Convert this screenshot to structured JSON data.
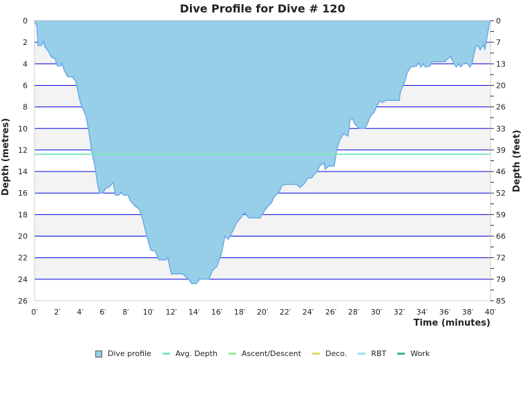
{
  "chart_data": {
    "type": "area",
    "title": "Dive Profile for Dive # 120",
    "xlabel": "Time (minutes)",
    "ylabel": "Depth (metres)",
    "ylabel_right": "Depth (feet)",
    "xlim": [
      0,
      40
    ],
    "ylim": [
      0,
      26
    ],
    "y_inverted": true,
    "x_ticks": [
      "0′",
      "2′",
      "4′",
      "6′",
      "8′",
      "10′",
      "12′",
      "14′",
      "16′",
      "18′",
      "20′",
      "22′",
      "24′",
      "26′",
      "28′",
      "30′",
      "32′",
      "34′",
      "36′",
      "38′",
      "40′"
    ],
    "y_ticks": [
      "0",
      "2",
      "4",
      "6",
      "8",
      "10",
      "12",
      "14",
      "16",
      "18",
      "20",
      "22",
      "24",
      "26"
    ],
    "y_right_ticks": [
      "0",
      "7",
      "13",
      "20",
      "26",
      "33",
      "39",
      "46",
      "52",
      "59",
      "66",
      "72",
      "79",
      "85"
    ],
    "grid": true,
    "avg_depth": 12.4,
    "colors": {
      "profile_fill": "#97cfe9",
      "profile_line": "#6aa8e8",
      "grid": "#0000dd",
      "band": "#f3f3f3",
      "avg_depth": "#7de8b8"
    },
    "series": [
      {
        "name": "Dive profile",
        "points": [
          [
            0,
            0
          ],
          [
            0.2,
            0.5
          ],
          [
            0.3,
            2.3
          ],
          [
            0.6,
            2.3
          ],
          [
            0.8,
            1.9
          ],
          [
            0.9,
            2.4
          ],
          [
            1.2,
            2.8
          ],
          [
            1.5,
            3.4
          ],
          [
            1.8,
            3.5
          ],
          [
            2.0,
            4.2
          ],
          [
            2.3,
            4.2
          ],
          [
            2.4,
            3.9
          ],
          [
            2.6,
            4.6
          ],
          [
            2.9,
            5.2
          ],
          [
            3.3,
            5.2
          ],
          [
            3.6,
            5.6
          ],
          [
            3.8,
            6.5
          ],
          [
            4.0,
            7.5
          ],
          [
            4.2,
            8.1
          ],
          [
            4.5,
            8.8
          ],
          [
            4.8,
            10.5
          ],
          [
            5.0,
            12.0
          ],
          [
            5.3,
            13.5
          ],
          [
            5.5,
            15.0
          ],
          [
            5.7,
            16.0
          ],
          [
            6.0,
            16.0
          ],
          [
            6.2,
            15.6
          ],
          [
            6.6,
            15.4
          ],
          [
            6.9,
            15.0
          ],
          [
            7.1,
            16.2
          ],
          [
            7.4,
            16.2
          ],
          [
            7.6,
            15.9
          ],
          [
            7.8,
            16.2
          ],
          [
            8.2,
            16.2
          ],
          [
            8.4,
            16.7
          ],
          [
            8.8,
            17.2
          ],
          [
            9.2,
            17.5
          ],
          [
            9.5,
            18.5
          ],
          [
            9.8,
            19.8
          ],
          [
            10.2,
            21.3
          ],
          [
            10.6,
            21.4
          ],
          [
            10.9,
            22.2
          ],
          [
            11.5,
            22.2
          ],
          [
            11.7,
            22.0
          ],
          [
            12.0,
            23.5
          ],
          [
            13.0,
            23.5
          ],
          [
            13.5,
            24.0
          ],
          [
            13.8,
            24.4
          ],
          [
            14.2,
            24.4
          ],
          [
            14.5,
            24.0
          ],
          [
            15.3,
            24.0
          ],
          [
            15.6,
            23.2
          ],
          [
            16.0,
            22.8
          ],
          [
            16.4,
            21.6
          ],
          [
            16.7,
            20.0
          ],
          [
            17.0,
            20.3
          ],
          [
            17.4,
            19.5
          ],
          [
            17.7,
            18.8
          ],
          [
            18.1,
            18.3
          ],
          [
            18.4,
            17.8
          ],
          [
            18.8,
            18.3
          ],
          [
            19.8,
            18.3
          ],
          [
            20.2,
            17.6
          ],
          [
            20.5,
            17.2
          ],
          [
            20.8,
            16.9
          ],
          [
            21.0,
            16.4
          ],
          [
            21.5,
            15.8
          ],
          [
            21.7,
            15.3
          ],
          [
            22.0,
            15.2
          ],
          [
            23.0,
            15.2
          ],
          [
            23.3,
            15.5
          ],
          [
            23.6,
            15.2
          ],
          [
            24.0,
            14.6
          ],
          [
            24.3,
            14.6
          ],
          [
            24.6,
            14.2
          ],
          [
            24.8,
            14.0
          ],
          [
            25.0,
            13.5
          ],
          [
            25.4,
            13.2
          ],
          [
            25.5,
            13.8
          ],
          [
            25.8,
            13.5
          ],
          [
            26.3,
            13.5
          ],
          [
            26.5,
            12.0
          ],
          [
            26.8,
            11.0
          ],
          [
            27.1,
            10.5
          ],
          [
            27.5,
            10.7
          ],
          [
            27.7,
            9.1
          ],
          [
            27.9,
            9.1
          ],
          [
            28.1,
            9.6
          ],
          [
            28.5,
            10.0
          ],
          [
            29.0,
            10.0
          ],
          [
            29.3,
            9.3
          ],
          [
            29.5,
            8.8
          ],
          [
            29.8,
            8.5
          ],
          [
            30.0,
            8.0
          ],
          [
            30.3,
            7.4
          ],
          [
            30.5,
            7.6
          ],
          [
            30.8,
            7.4
          ],
          [
            32.0,
            7.4
          ],
          [
            32.1,
            6.6
          ],
          [
            32.5,
            5.6
          ],
          [
            32.7,
            4.8
          ],
          [
            33.0,
            4.3
          ],
          [
            33.5,
            4.2
          ],
          [
            33.7,
            3.9
          ],
          [
            33.9,
            4.3
          ],
          [
            34.1,
            4.0
          ],
          [
            34.3,
            4.3
          ],
          [
            34.7,
            4.2
          ],
          [
            34.9,
            3.8
          ],
          [
            36.0,
            3.8
          ],
          [
            36.3,
            3.5
          ],
          [
            36.5,
            3.3
          ],
          [
            36.8,
            4.0
          ],
          [
            37.0,
            4.3
          ],
          [
            37.2,
            4.0
          ],
          [
            37.4,
            4.3
          ],
          [
            37.6,
            4.0
          ],
          [
            38.0,
            4.0
          ],
          [
            38.2,
            4.3
          ],
          [
            38.4,
            3.9
          ],
          [
            38.7,
            2.4
          ],
          [
            38.9,
            2.3
          ],
          [
            39.1,
            2.7
          ],
          [
            39.4,
            2.2
          ],
          [
            39.5,
            2.7
          ],
          [
            39.7,
            1.5
          ],
          [
            39.95,
            0
          ],
          [
            40,
            0
          ]
        ]
      }
    ]
  },
  "legend": [
    {
      "label": "Dive profile",
      "color": "#97cfe9",
      "kind": "box"
    },
    {
      "label": "Avg. Depth",
      "color": "#7de8b8",
      "kind": "line"
    },
    {
      "label": "Ascent/Descent",
      "color": "#99ee99",
      "kind": "line"
    },
    {
      "label": "Deco.",
      "color": "#dddd66",
      "kind": "line"
    },
    {
      "label": "RBT",
      "color": "#99ddf5",
      "kind": "line"
    },
    {
      "label": "Work",
      "color": "#33bb88",
      "kind": "line"
    }
  ]
}
